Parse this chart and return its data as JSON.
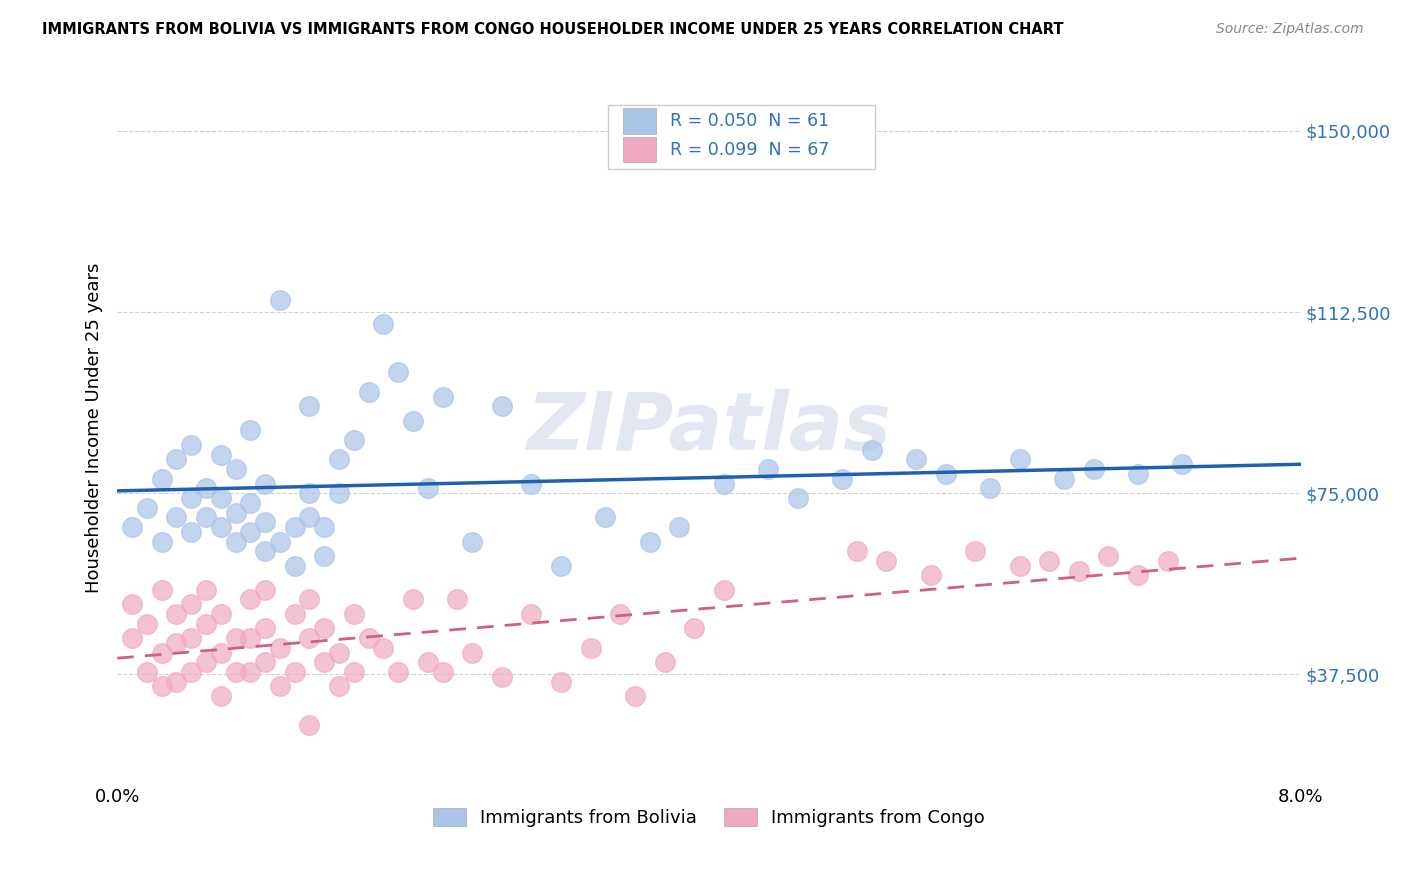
{
  "title": "IMMIGRANTS FROM BOLIVIA VS IMMIGRANTS FROM CONGO HOUSEHOLDER INCOME UNDER 25 YEARS CORRELATION CHART",
  "source": "Source: ZipAtlas.com",
  "ylabel": "Householder Income Under 25 years",
  "xlim": [
    0.0,
    0.08
  ],
  "ylim": [
    15000,
    162000
  ],
  "yticks": [
    37500,
    75000,
    112500,
    150000
  ],
  "ytick_labels": [
    "$37,500",
    "$75,000",
    "$112,500",
    "$150,000"
  ],
  "xticks": [
    0.0,
    0.02,
    0.04,
    0.06,
    0.08
  ],
  "xtick_labels": [
    "0.0%",
    "",
    "",
    "",
    "8.0%"
  ],
  "watermark": "ZIPatlas",
  "bolivia_R": "0.050",
  "bolivia_N": "61",
  "congo_R": "0.099",
  "congo_N": "67",
  "bolivia_color": "#aac4e8",
  "congo_color": "#f0aac0",
  "bolivia_line_color": "#2060b0",
  "congo_line_color": "#d06080",
  "background_color": "#ffffff",
  "grid_color": "#cccccc",
  "legend_text_color": "#3070c0",
  "bolivia_scatter_x": [
    0.001,
    0.002,
    0.003,
    0.003,
    0.004,
    0.004,
    0.005,
    0.005,
    0.005,
    0.006,
    0.006,
    0.007,
    0.007,
    0.007,
    0.008,
    0.008,
    0.008,
    0.009,
    0.009,
    0.009,
    0.01,
    0.01,
    0.01,
    0.011,
    0.011,
    0.012,
    0.012,
    0.013,
    0.013,
    0.013,
    0.014,
    0.014,
    0.015,
    0.015,
    0.016,
    0.017,
    0.018,
    0.019,
    0.02,
    0.021,
    0.022,
    0.024,
    0.026,
    0.028,
    0.03,
    0.033,
    0.036,
    0.038,
    0.041,
    0.044,
    0.046,
    0.049,
    0.051,
    0.054,
    0.056,
    0.059,
    0.061,
    0.064,
    0.066,
    0.069,
    0.072
  ],
  "bolivia_scatter_y": [
    68000,
    72000,
    65000,
    78000,
    70000,
    82000,
    67000,
    74000,
    85000,
    70000,
    76000,
    68000,
    74000,
    83000,
    65000,
    71000,
    80000,
    67000,
    73000,
    88000,
    63000,
    69000,
    77000,
    65000,
    115000,
    60000,
    68000,
    70000,
    75000,
    93000,
    62000,
    68000,
    75000,
    82000,
    86000,
    96000,
    110000,
    100000,
    90000,
    76000,
    95000,
    65000,
    93000,
    77000,
    60000,
    70000,
    65000,
    68000,
    77000,
    80000,
    74000,
    78000,
    84000,
    82000,
    79000,
    76000,
    82000,
    78000,
    80000,
    79000,
    81000
  ],
  "congo_scatter_x": [
    0.001,
    0.001,
    0.002,
    0.002,
    0.003,
    0.003,
    0.003,
    0.004,
    0.004,
    0.004,
    0.005,
    0.005,
    0.005,
    0.006,
    0.006,
    0.006,
    0.007,
    0.007,
    0.007,
    0.008,
    0.008,
    0.009,
    0.009,
    0.009,
    0.01,
    0.01,
    0.01,
    0.011,
    0.011,
    0.012,
    0.012,
    0.013,
    0.013,
    0.013,
    0.014,
    0.014,
    0.015,
    0.015,
    0.016,
    0.016,
    0.017,
    0.018,
    0.019,
    0.02,
    0.021,
    0.022,
    0.023,
    0.024,
    0.026,
    0.028,
    0.03,
    0.032,
    0.034,
    0.035,
    0.037,
    0.039,
    0.041,
    0.05,
    0.052,
    0.055,
    0.058,
    0.061,
    0.063,
    0.065,
    0.067,
    0.069,
    0.071
  ],
  "congo_scatter_y": [
    45000,
    52000,
    48000,
    38000,
    55000,
    35000,
    42000,
    50000,
    36000,
    44000,
    52000,
    38000,
    45000,
    40000,
    48000,
    55000,
    42000,
    50000,
    33000,
    38000,
    45000,
    38000,
    45000,
    53000,
    40000,
    47000,
    55000,
    35000,
    43000,
    50000,
    38000,
    45000,
    53000,
    27000,
    40000,
    47000,
    35000,
    42000,
    50000,
    38000,
    45000,
    43000,
    38000,
    53000,
    40000,
    38000,
    53000,
    42000,
    37000,
    50000,
    36000,
    43000,
    50000,
    33000,
    40000,
    47000,
    55000,
    63000,
    61000,
    58000,
    63000,
    60000,
    61000,
    59000,
    62000,
    58000,
    61000
  ]
}
